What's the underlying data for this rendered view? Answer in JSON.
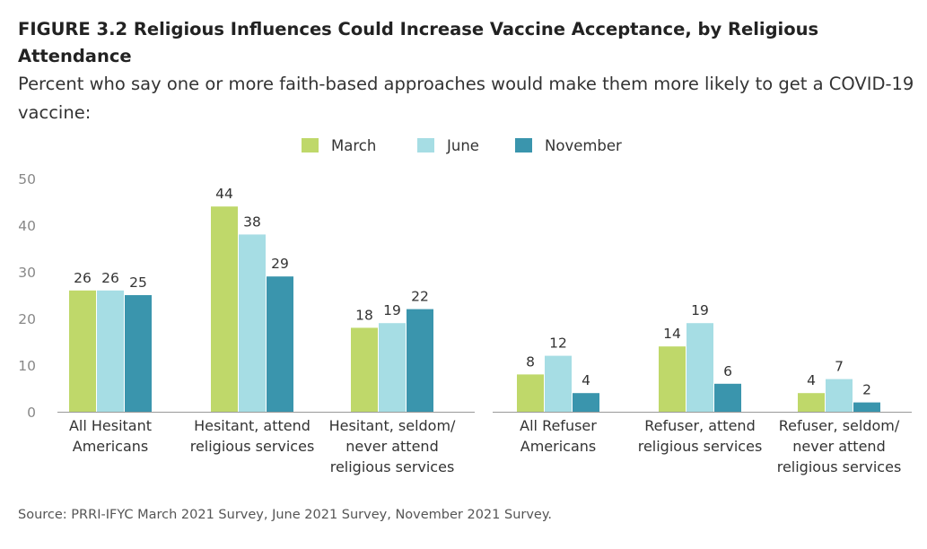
{
  "title": "FIGURE 3.2  Religious Influences Could Increase Vaccine Acceptance, by Religious Attendance",
  "subtitle": "Percent who say one or more faith-based approaches would make them more likely to get a COVID-19 vaccine:",
  "source": "Source: PRRI-IFYC March 2021 Survey, June 2021 Survey, November 2021 Survey.",
  "chart_data": {
    "type": "bar",
    "ylim": [
      0,
      50
    ],
    "yticks": [
      0,
      10,
      20,
      30,
      40,
      50
    ],
    "grid": false,
    "legend_position": "top-center",
    "series": [
      {
        "name": "March",
        "color": "#bfd86a",
        "values": [
          26,
          44,
          18,
          8,
          14,
          4
        ]
      },
      {
        "name": "June",
        "color": "#a6dde4",
        "values": [
          26,
          38,
          19,
          12,
          19,
          7
        ]
      },
      {
        "name": "November",
        "color": "#3a95ad",
        "values": [
          25,
          29,
          22,
          4,
          6,
          2
        ]
      }
    ],
    "categories": [
      [
        "All Hesitant",
        "Americans"
      ],
      [
        "Hesitant, attend",
        "religious services"
      ],
      [
        "Hesitant, seldom/",
        "never attend",
        "religious services"
      ],
      [
        "All Refuser",
        "Americans"
      ],
      [
        "Refuser, attend",
        "religious services"
      ],
      [
        "Refuser, seldom/",
        "never attend",
        "religious services"
      ]
    ]
  }
}
